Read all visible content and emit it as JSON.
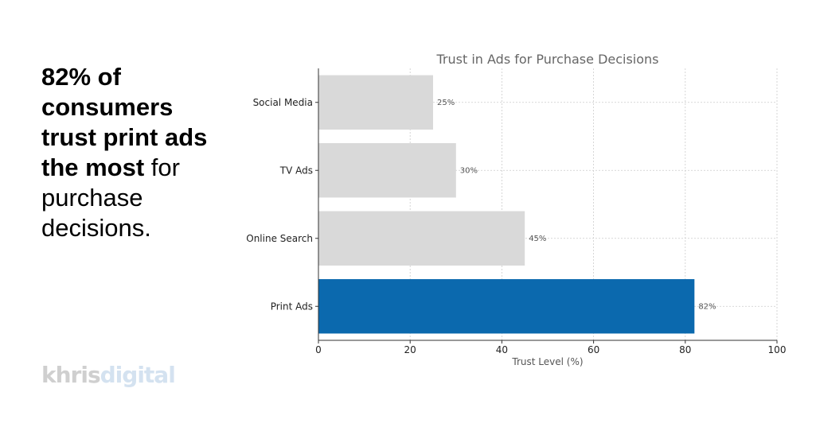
{
  "headline": {
    "bold_text": "82% of consumers trust print ads the most",
    "regular_text": " for purchase decisions."
  },
  "logo": {
    "part1": "khris",
    "part2": "digital"
  },
  "colors": {
    "highlight": "#0b69ae",
    "default_bar": "#d9d9d9",
    "grid": "#cccccc"
  },
  "chart_data": {
    "type": "bar",
    "orientation": "horizontal",
    "title": "Trust in Ads for Purchase Decisions",
    "xlabel": "Trust Level (%)",
    "ylabel": "",
    "xlim": [
      0,
      100
    ],
    "xticks": [
      0,
      20,
      40,
      60,
      80,
      100
    ],
    "grid": true,
    "categories": [
      "Social Media",
      "TV Ads",
      "Online Search",
      "Print Ads"
    ],
    "values": [
      25,
      30,
      45,
      82
    ],
    "data_labels": [
      "25%",
      "30%",
      "45%",
      "82%"
    ],
    "highlight_category": "Print Ads"
  }
}
